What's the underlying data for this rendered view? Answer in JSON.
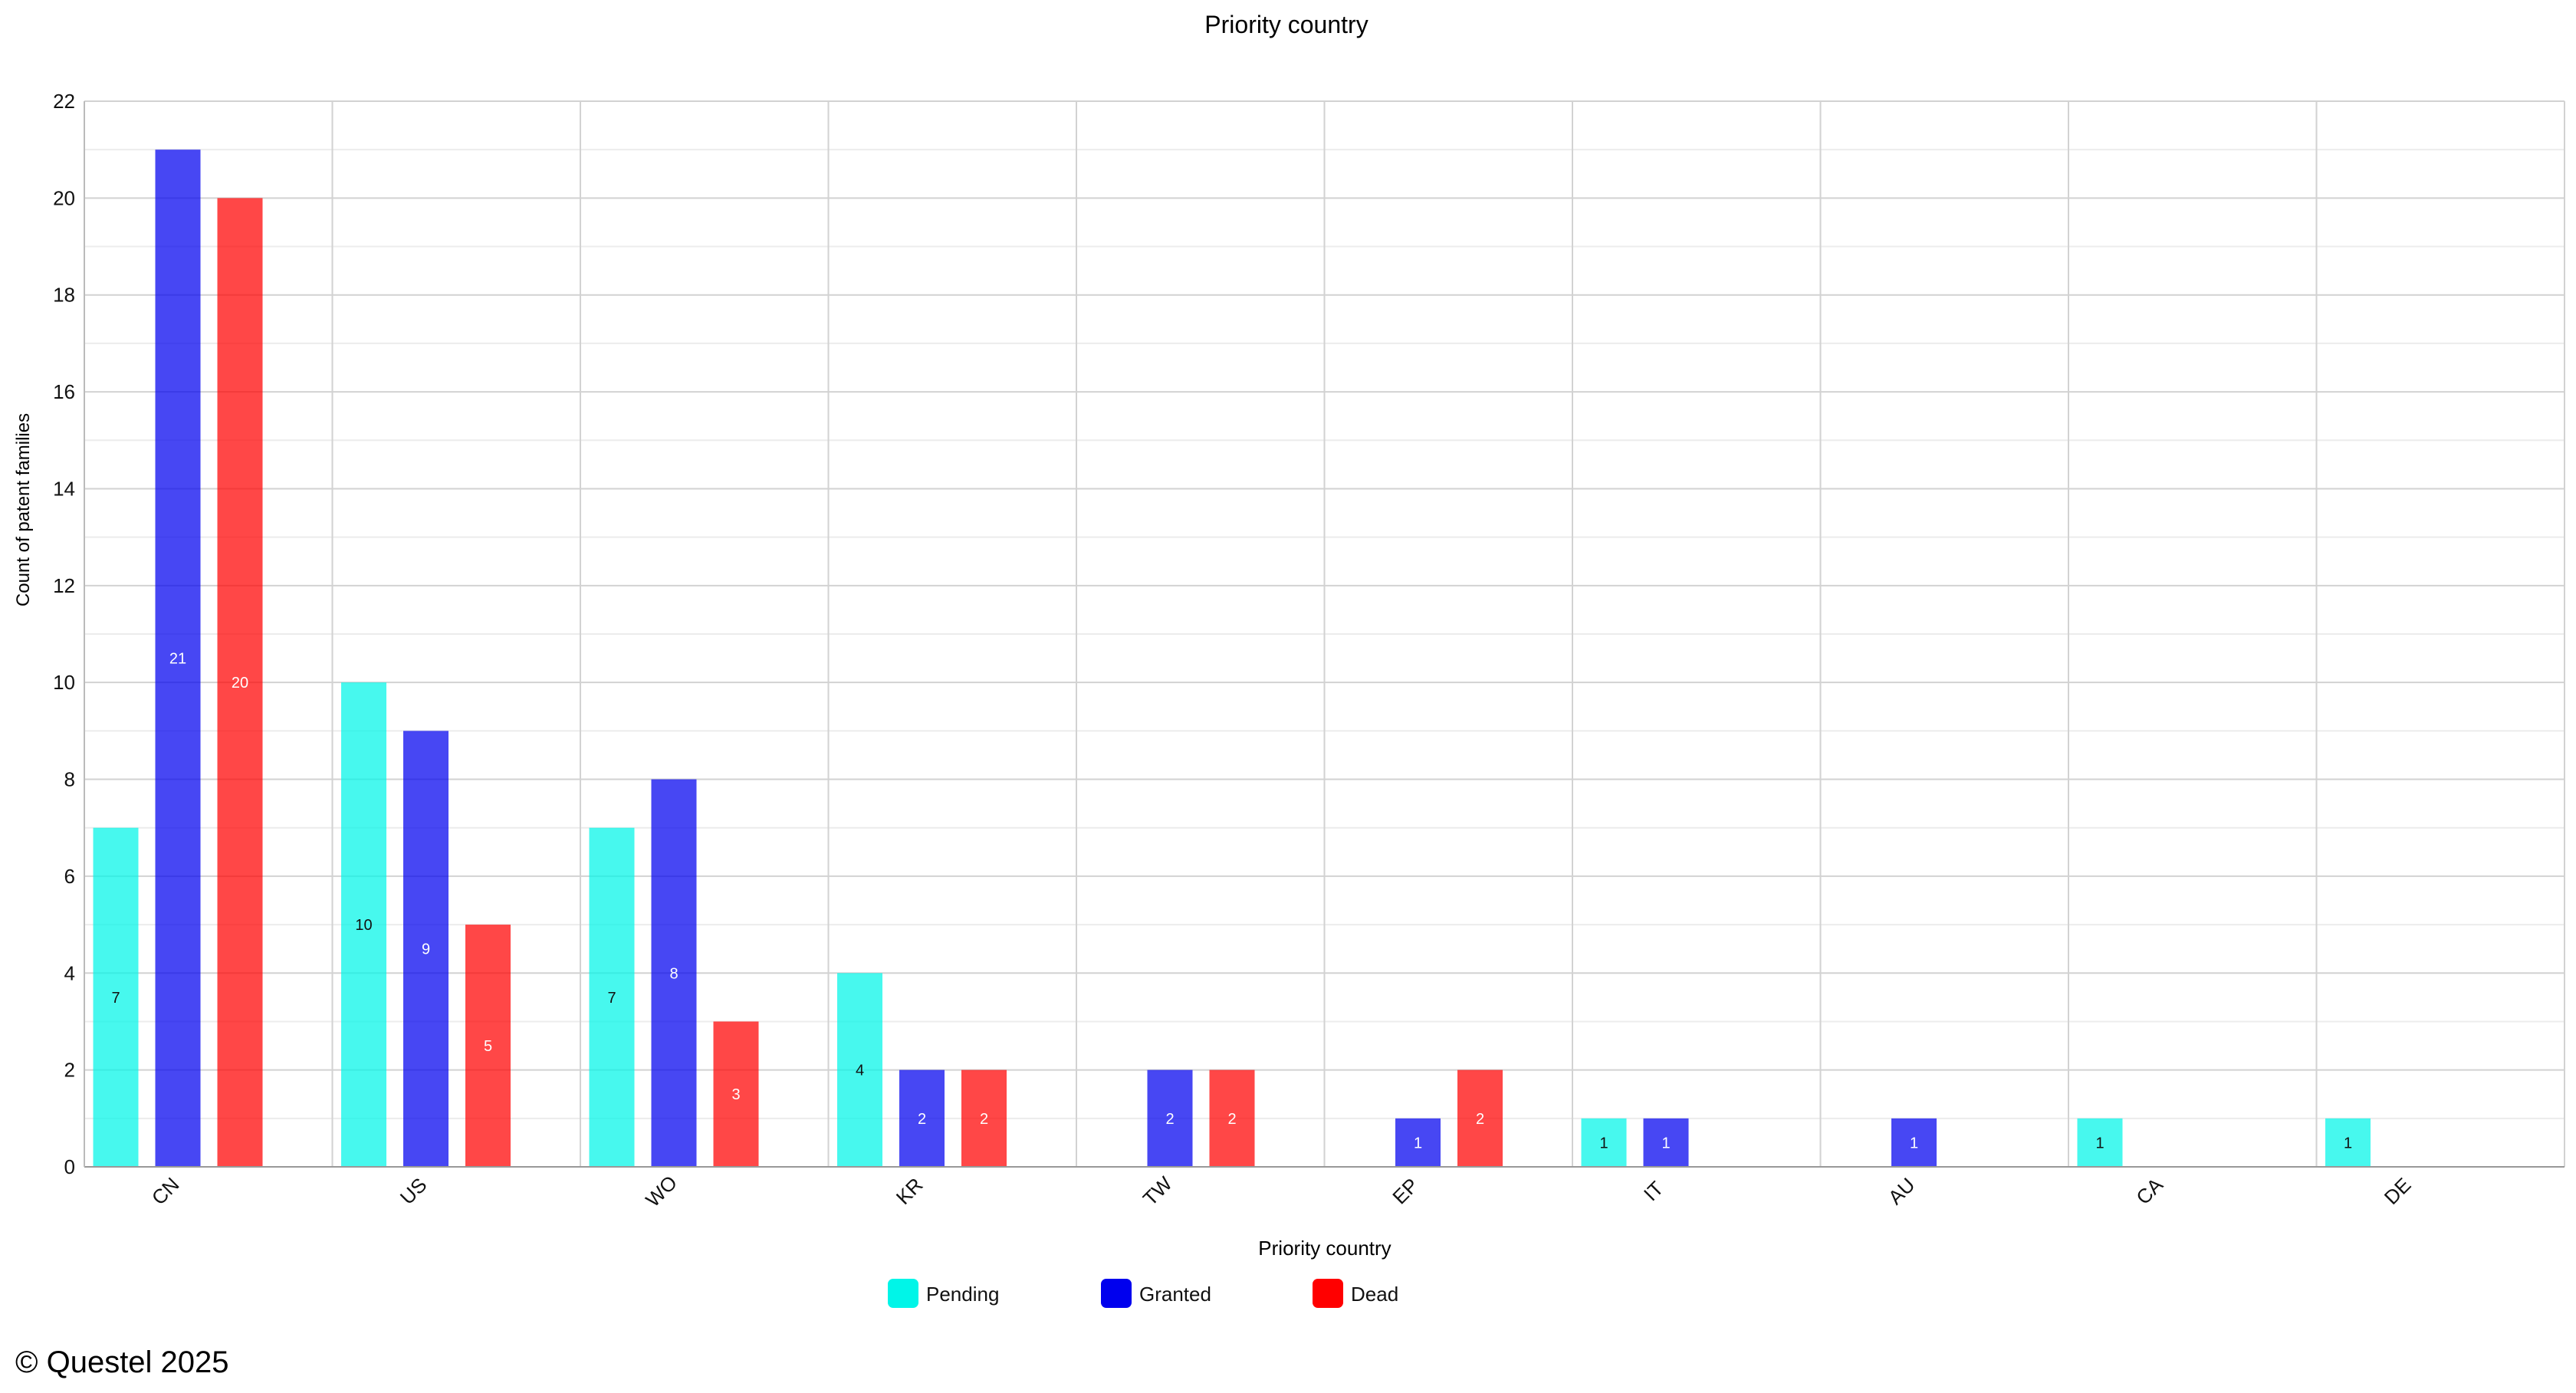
{
  "chart_data": {
    "type": "bar",
    "title": "Priority country",
    "xlabel": "Priority country",
    "ylabel": "Count of patent families",
    "ylim": [
      0,
      22
    ],
    "yticks": [
      0,
      2,
      4,
      6,
      8,
      10,
      12,
      14,
      16,
      18,
      20,
      22
    ],
    "grid": true,
    "legend_position": "bottom",
    "categories": [
      "CN",
      "US",
      "WO",
      "KR",
      "TW",
      "EP",
      "IT",
      "AU",
      "CA",
      "DE"
    ],
    "series": [
      {
        "name": "Pending",
        "color": "#00f5e8",
        "values": [
          7,
          10,
          7,
          4,
          null,
          null,
          1,
          null,
          1,
          1
        ]
      },
      {
        "name": "Granted",
        "color": "#0000ee",
        "values": [
          21,
          9,
          8,
          2,
          2,
          1,
          1,
          1,
          null,
          null
        ]
      },
      {
        "name": "Dead",
        "color": "#ff0000",
        "values": [
          20,
          5,
          3,
          2,
          2,
          2,
          null,
          null,
          null,
          null
        ]
      }
    ]
  },
  "footer": {
    "copyright": "© Questel 2025"
  }
}
